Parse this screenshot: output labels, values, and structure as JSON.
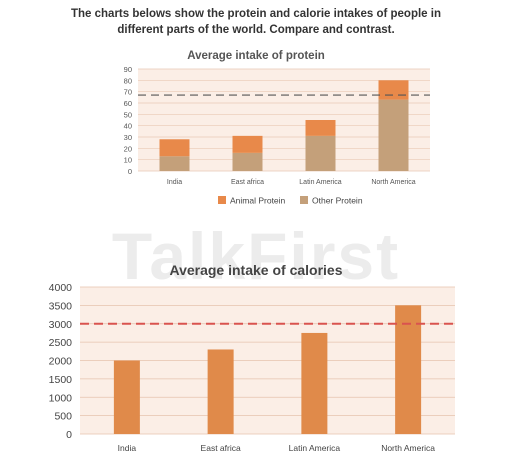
{
  "prompt": {
    "line1": "The charts belows show the protein and calorie intakes of people in",
    "line2": "different parts of the world. Compare and contrast."
  },
  "watermark": {
    "main": "TalkFirst",
    "sub": "Enjoy learning, enjoy English"
  },
  "colors": {
    "animal": "#E8894A",
    "other": "#C4A07A",
    "bar2": "#E08A4A",
    "panel": "#FBEEE6",
    "ref_line1": "#555555",
    "ref_line2": "#D9534F"
  },
  "chart_data": [
    {
      "type": "bar",
      "stacked": true,
      "title": "Average intake of protein",
      "categories": [
        "India",
        "East africa",
        "Latin America",
        "North America"
      ],
      "series": [
        {
          "name": "Other Protein",
          "values": [
            13,
            16,
            31,
            63
          ]
        },
        {
          "name": "Animal Protein",
          "values": [
            15,
            15,
            14,
            17
          ]
        }
      ],
      "reference_line": 67,
      "ylim": [
        0,
        90
      ],
      "yticks": [
        0,
        10,
        20,
        30,
        40,
        50,
        60,
        70,
        80,
        90
      ],
      "grid": true,
      "legend": [
        "Animal Protein",
        "Other Protein"
      ],
      "legend_position": "bottom"
    },
    {
      "type": "bar",
      "title": "Average intake of calories",
      "categories": [
        "India",
        "East africa",
        "Latin America",
        "North America"
      ],
      "values": [
        2000,
        2300,
        2750,
        3500
      ],
      "reference_line": 3000,
      "ylim": [
        0,
        4000
      ],
      "yticks": [
        0,
        500,
        1000,
        1500,
        2000,
        2500,
        3000,
        3500,
        4000
      ],
      "grid": true
    }
  ]
}
